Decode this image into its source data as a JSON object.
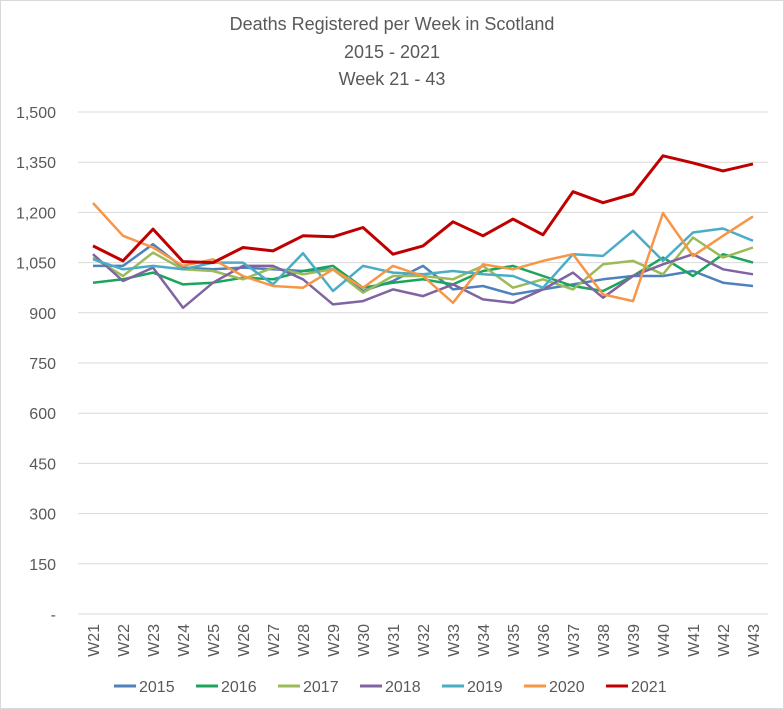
{
  "chart_data": {
    "type": "line",
    "title": "Deaths Registered per Week in Scotland",
    "subtitle_lines": [
      "2015 - 2021",
      "Week 21 - 43"
    ],
    "xlabel": "",
    "ylabel": "",
    "ylim": [
      0,
      1500
    ],
    "y_ticks": [
      0,
      150,
      300,
      450,
      600,
      750,
      900,
      1050,
      1200,
      1350,
      1500
    ],
    "y_tick_labels": [
      "-",
      "150",
      "300",
      "450",
      "600",
      "750",
      "900",
      "1,050",
      "1,200",
      "1,350",
      "1,500"
    ],
    "grid": true,
    "legend_position": "bottom",
    "categories": [
      "W21",
      "W22",
      "W23",
      "W24",
      "W25",
      "W26",
      "W27",
      "W28",
      "W29",
      "W30",
      "W31",
      "W32",
      "W33",
      "W34",
      "W35",
      "W36",
      "W37",
      "W38",
      "W39",
      "W40",
      "W41",
      "W42",
      "W43"
    ],
    "series": [
      {
        "name": "2015",
        "color": "#4f81bd",
        "values": [
          1040,
          1040,
          1105,
          1035,
          1030,
          1035,
          1030,
          1025,
          1030,
          965,
          995,
          1040,
          970,
          980,
          955,
          970,
          985,
          1000,
          1010,
          1010,
          1025,
          990,
          980
        ]
      },
      {
        "name": "2016",
        "color": "#1aa55a",
        "values": [
          990,
          1000,
          1020,
          985,
          990,
          1005,
          1000,
          1025,
          1040,
          975,
          990,
          1000,
          985,
          1025,
          1040,
          1010,
          980,
          965,
          1010,
          1065,
          1010,
          1075,
          1050
        ]
      },
      {
        "name": "2017",
        "color": "#9bbb59",
        "values": [
          1065,
          1010,
          1080,
          1030,
          1025,
          1000,
          1035,
          1015,
          1030,
          960,
          1010,
          1010,
          1000,
          1040,
          975,
          1000,
          970,
          1045,
          1055,
          1015,
          1125,
          1065,
          1095
        ]
      },
      {
        "name": "2018",
        "color": "#8064a2",
        "values": [
          1075,
          995,
          1035,
          915,
          990,
          1040,
          1040,
          1000,
          925,
          935,
          970,
          950,
          985,
          940,
          930,
          970,
          1020,
          945,
          1010,
          1045,
          1075,
          1030,
          1015
        ]
      },
      {
        "name": "2019",
        "color": "#4bacc6",
        "values": [
          1060,
          1030,
          1040,
          1030,
          1050,
          1050,
          985,
          1078,
          965,
          1040,
          1020,
          1015,
          1025,
          1015,
          1010,
          975,
          1075,
          1070,
          1145,
          1055,
          1140,
          1152,
          1115
        ]
      },
      {
        "name": "2020",
        "color": "#f79646",
        "values": [
          1228,
          1130,
          1095,
          1040,
          1060,
          1010,
          980,
          975,
          1030,
          975,
          1040,
          1010,
          930,
          1045,
          1030,
          1055,
          1075,
          955,
          935,
          1198,
          1070,
          1130,
          1188
        ]
      },
      {
        "name": "2021",
        "color": "#c00000",
        "values": [
          1100,
          1055,
          1150,
          1053,
          1050,
          1095,
          1085,
          1130,
          1127,
          1155,
          1075,
          1100,
          1172,
          1130,
          1180,
          1133,
          1262,
          1229,
          1255,
          1369,
          1348,
          1324,
          1345
        ]
      }
    ]
  }
}
